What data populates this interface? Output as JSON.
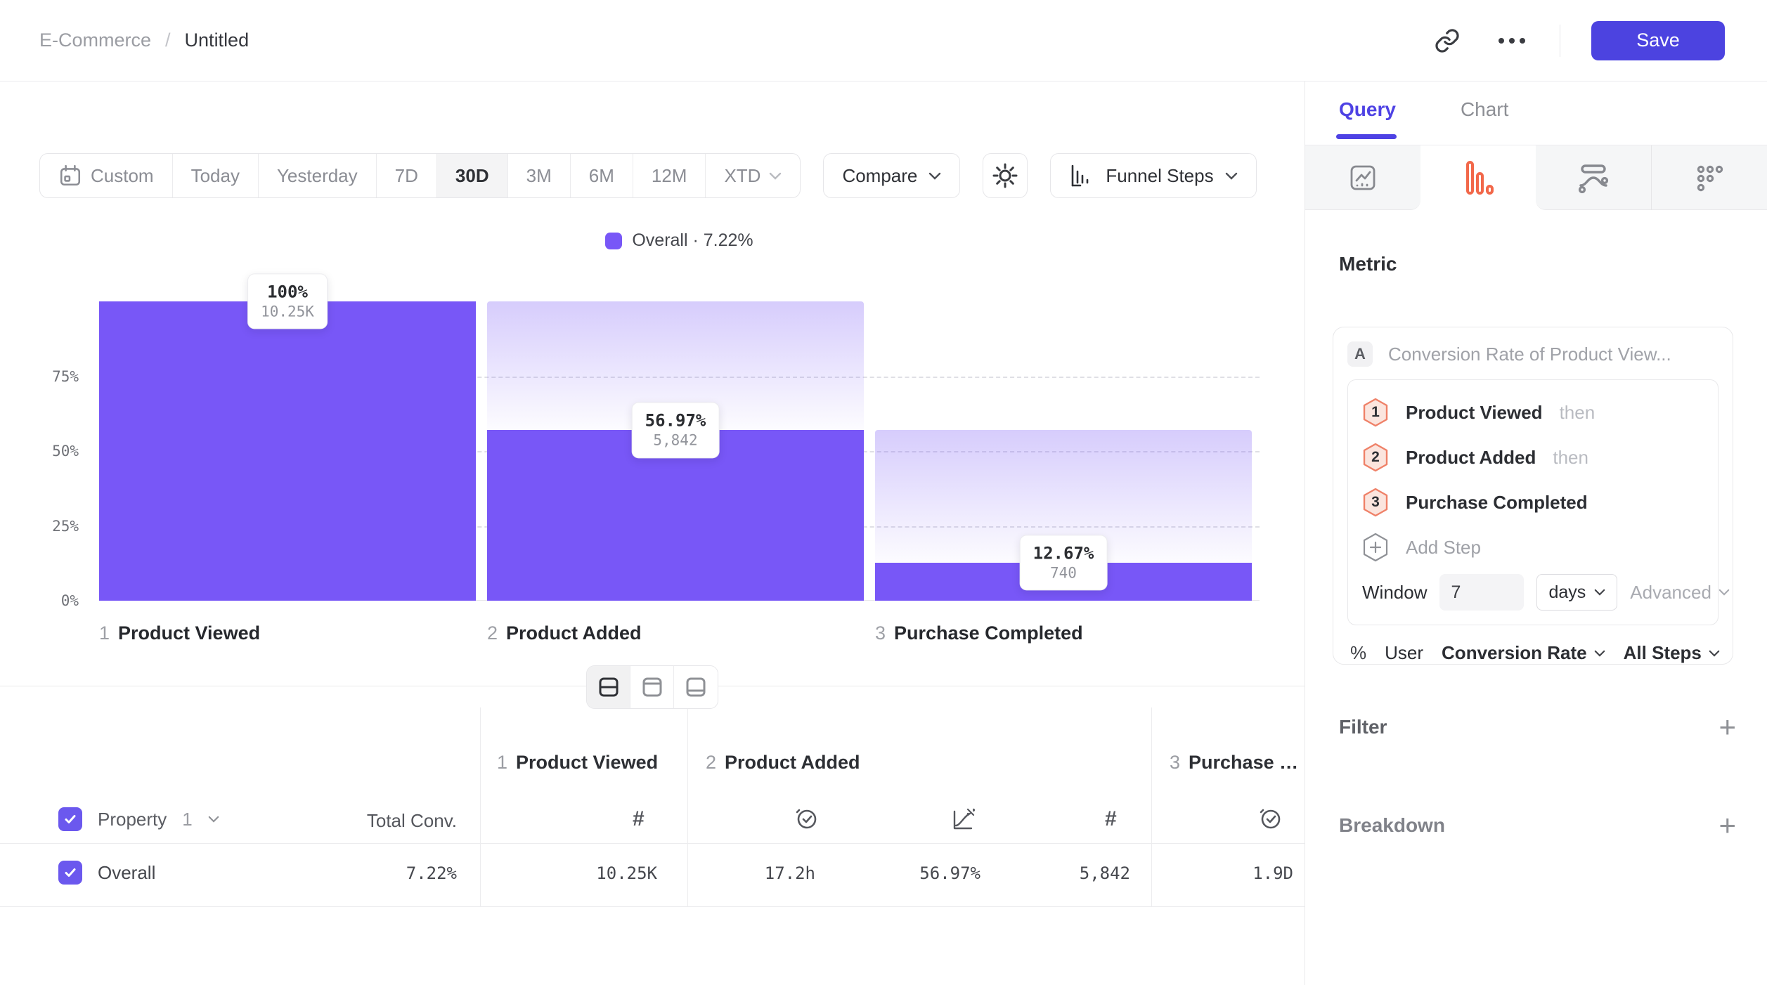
{
  "header": {
    "breadcrumb": {
      "parent": "E-Commerce",
      "separator": "/",
      "current": "Untitled"
    },
    "save_label": "Save"
  },
  "toolbar": {
    "date_ranges": [
      {
        "label": "Custom"
      },
      {
        "label": "Today"
      },
      {
        "label": "Yesterday"
      },
      {
        "label": "7D"
      },
      {
        "label": "30D"
      },
      {
        "label": "3M"
      },
      {
        "label": "6M"
      },
      {
        "label": "12M"
      },
      {
        "label": "XTD"
      }
    ],
    "active_range": "30D",
    "compare_label": "Compare",
    "chart_type_label": "Funnel Steps"
  },
  "legend": {
    "label": "Overall · 7.22%"
  },
  "chart_data": {
    "type": "bar",
    "subtype": "funnel-steps",
    "categories": [
      "Product Viewed",
      "Product Added",
      "Purchase Completed"
    ],
    "step_numbers": [
      "1",
      "2",
      "3"
    ],
    "series": [
      {
        "name": "Overall",
        "conversion_pct": [
          100,
          56.97,
          12.67
        ],
        "counts": [
          10250,
          5842,
          740
        ]
      }
    ],
    "pct_labels": [
      "100%",
      "56.97%",
      "12.67%"
    ],
    "count_labels": [
      "10.25K",
      "5,842",
      "740"
    ],
    "overall_conversion": "7.22%",
    "y_ticks": [
      "75%",
      "50%",
      "25%",
      "0%"
    ],
    "ylim": [
      0,
      100
    ],
    "grid": "dashed horizontal lines at 25/50/75"
  },
  "view_toggle": {
    "options": [
      "split-view",
      "table-top-view",
      "chart-bottom-view"
    ],
    "active": "split-view"
  },
  "table": {
    "property_header": {
      "label": "Property",
      "index": "1"
    },
    "total_header": "Total Conv.",
    "columns": [
      {
        "number": "1",
        "title": "Product Viewed"
      },
      {
        "number": "2",
        "title": "Product Added"
      },
      {
        "number": "3",
        "title": "Purchase Completed"
      }
    ],
    "row": {
      "name": "Overall",
      "total": "7.22%",
      "values": [
        "10.25K",
        "17.2h",
        "56.97%",
        "5,842",
        "1.9D"
      ],
      "checked": true
    }
  },
  "panel": {
    "tabs": [
      {
        "label": "Query"
      },
      {
        "label": "Chart"
      }
    ],
    "active_tab": "Query",
    "chart_types": [
      "insights",
      "funnel",
      "flows",
      "more"
    ],
    "active_chart_type": "funnel",
    "metric": {
      "heading": "Metric",
      "series_badge": "A",
      "series_label": "Conversion Rate of Product View...",
      "steps": [
        {
          "number": "1",
          "label": "Product Viewed",
          "suffix": "then"
        },
        {
          "number": "2",
          "label": "Product Added",
          "suffix": "then"
        },
        {
          "number": "3",
          "label": "Purchase Completed",
          "suffix": ""
        }
      ],
      "add_step_label": "Add Step",
      "window": {
        "label": "Window",
        "value": "7",
        "unit": "days",
        "advanced_label": "Advanced"
      },
      "measure": {
        "symbol": "%",
        "entity": "User",
        "metric": "Conversion Rate",
        "scope": "All Steps"
      }
    },
    "filter": {
      "label": "Filter"
    },
    "breakdown": {
      "label": "Breakdown"
    }
  },
  "colors": {
    "accent_purple": "#7857f7",
    "indigo": "#4e42e4",
    "coral": "#f2684a",
    "save_button": "#4c43e0"
  }
}
